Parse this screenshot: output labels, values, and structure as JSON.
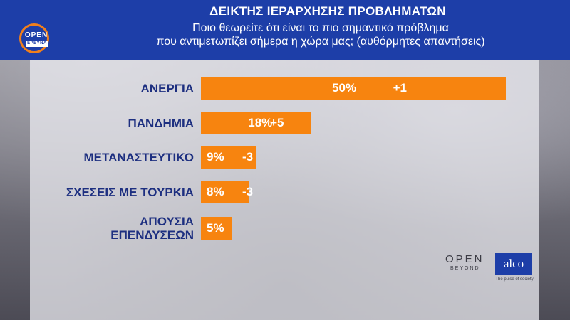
{
  "header": {
    "logo_text": "OPEN",
    "logo_sub": "ΕΡΕΥΝΑ",
    "title": "ΔΕΙΚΤΗΣ ΙΕΡΑΡΧΗΣΗΣ ΠΡΟΒΛΗΜΑΤΩΝ",
    "subtitle_line1": "Ποιο θεωρείτε ότι είναι το πιο σημαντικό πρόβλημα",
    "subtitle_line2": "που αντιμετωπίζει σήμερα η χώρα μας; (αυθόρμητες απαντήσεις)"
  },
  "footer": {
    "open_text": "OPEN",
    "beyond_text": "BEYOND",
    "alco_text": "alco",
    "alco_tagline": "The pulse of society"
  },
  "colors": {
    "header": "#1d3ea8",
    "bar": "#f7840f",
    "label": "#1d2f80"
  },
  "chart_data": {
    "type": "bar",
    "orientation": "horizontal",
    "title": "ΔΕΙΚΤΗΣ ΙΕΡΑΡΧΗΣΗΣ ΠΡΟΒΛΗΜΑΤΩΝ",
    "unit": "%",
    "categories": [
      [
        "ΑΝΕΡΓΙΑ"
      ],
      [
        "ΠΑΝΔΗΜΙΑ"
      ],
      [
        "ΜΕΤΑΝΑΣΤΕΥΤΙΚΟ"
      ],
      [
        "ΣΧΕΣΕΙΣ ΜΕ ΤΟΥΡΚΙΑ"
      ],
      [
        "ΑΠΟΥΣΙΑ",
        "ΕΠΕΝΔΥΣΕΩΝ"
      ]
    ],
    "values": [
      50,
      18,
      9,
      8,
      5
    ],
    "value_labels": [
      "50%",
      "18%",
      "9%",
      "8%",
      "5%"
    ],
    "change_labels": [
      "+1",
      "+5",
      "-3",
      "-3",
      ""
    ]
  }
}
